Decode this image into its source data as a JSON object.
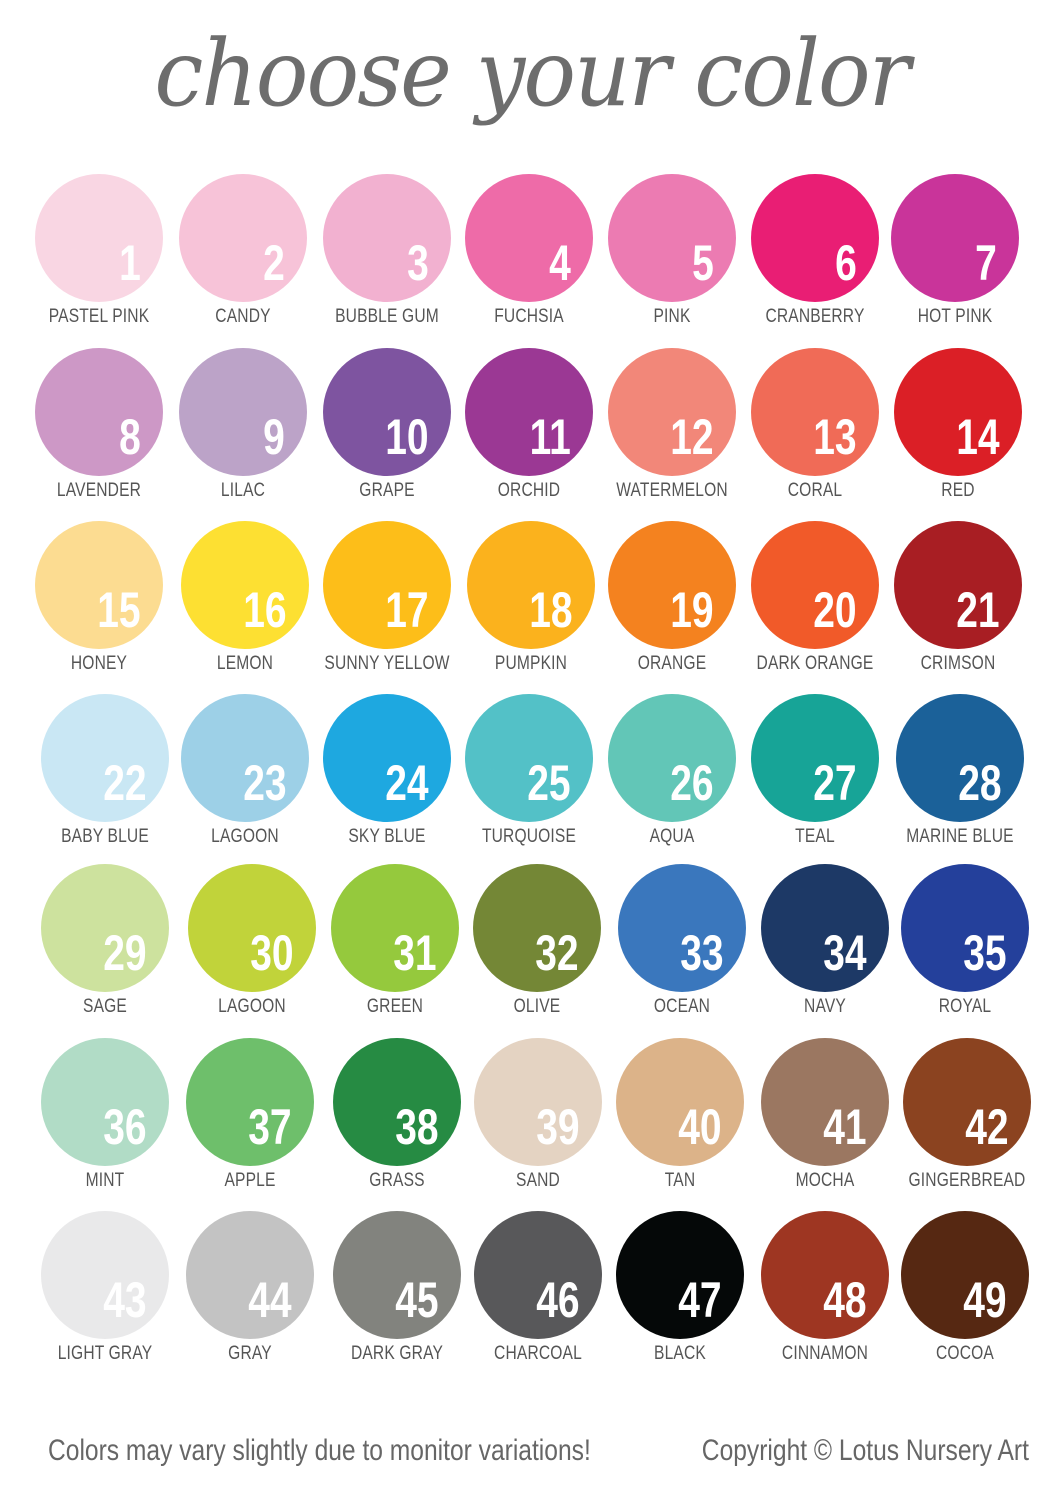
{
  "title": "choose your color",
  "swatches": [
    {
      "number": "1",
      "name": "PASTEL PINK",
      "color": "#f9d6e3"
    },
    {
      "number": "2",
      "name": "CANDY",
      "color": "#f7c3d8"
    },
    {
      "number": "3",
      "name": "BUBBLE GUM",
      "color": "#f2b1d0"
    },
    {
      "number": "4",
      "name": "FUCHSIA",
      "color": "#ee6ba8"
    },
    {
      "number": "5",
      "name": "PINK",
      "color": "#ec7bb2"
    },
    {
      "number": "6",
      "name": "CRANBERRY",
      "color": "#e91e74"
    },
    {
      "number": "7",
      "name": "HOT PINK",
      "color": "#c9349a"
    },
    {
      "number": "8",
      "name": "LAVENDER",
      "color": "#cd98c6"
    },
    {
      "number": "9",
      "name": "LILAC",
      "color": "#bca3c8"
    },
    {
      "number": "10",
      "name": "GRAPE",
      "color": "#7e54a0"
    },
    {
      "number": "11",
      "name": "ORCHID",
      "color": "#9b3894"
    },
    {
      "number": "12",
      "name": "WATERMELON",
      "color": "#f28779"
    },
    {
      "number": "13",
      "name": "CORAL",
      "color": "#f06b57"
    },
    {
      "number": "14",
      "name": "RED",
      "color": "#db1f26"
    },
    {
      "number": "15",
      "name": "HONEY",
      "color": "#fcdc91"
    },
    {
      "number": "16",
      "name": "LEMON",
      "color": "#fde032"
    },
    {
      "number": "17",
      "name": "SUNNY YELLOW",
      "color": "#fdbe19"
    },
    {
      "number": "18",
      "name": "PUMPKIN",
      "color": "#fbb21d"
    },
    {
      "number": "19",
      "name": "ORANGE",
      "color": "#f4821f"
    },
    {
      "number": "20",
      "name": "DARK ORANGE",
      "color": "#f15a29"
    },
    {
      "number": "21",
      "name": "CRIMSON",
      "color": "#a81e23"
    },
    {
      "number": "22",
      "name": "BABY BLUE",
      "color": "#c9e7f4"
    },
    {
      "number": "23",
      "name": "LAGOON",
      "color": "#9dd0e7"
    },
    {
      "number": "24",
      "name": "SKY BLUE",
      "color": "#1ea8e0"
    },
    {
      "number": "25",
      "name": "TURQUOISE",
      "color": "#53c1c7"
    },
    {
      "number": "26",
      "name": "AQUA",
      "color": "#62c6b7"
    },
    {
      "number": "27",
      "name": "TEAL",
      "color": "#17a497"
    },
    {
      "number": "28",
      "name": "MARINE BLUE",
      "color": "#1b6199"
    },
    {
      "number": "29",
      "name": "SAGE",
      "color": "#cde29e"
    },
    {
      "number": "30",
      "name": "LAGOON",
      "color": "#c1d33a"
    },
    {
      "number": "31",
      "name": "GREEN",
      "color": "#95c93d"
    },
    {
      "number": "32",
      "name": "OLIVE",
      "color": "#748736"
    },
    {
      "number": "33",
      "name": "OCEAN",
      "color": "#3a77bd"
    },
    {
      "number": "34",
      "name": "NAVY",
      "color": "#1d3966"
    },
    {
      "number": "35",
      "name": "ROYAL",
      "color": "#24409b"
    },
    {
      "number": "36",
      "name": "MINT",
      "color": "#b1dcc6"
    },
    {
      "number": "37",
      "name": "APPLE",
      "color": "#6ebf6b"
    },
    {
      "number": "38",
      "name": "GRASS",
      "color": "#268b43"
    },
    {
      "number": "39",
      "name": "SAND",
      "color": "#e4d3c2"
    },
    {
      "number": "40",
      "name": "TAN",
      "color": "#dcb389"
    },
    {
      "number": "41",
      "name": "MOCHA",
      "color": "#9b7761"
    },
    {
      "number": "42",
      "name": "GINGERBREAD",
      "color": "#8b4320"
    },
    {
      "number": "43",
      "name": "LIGHT GRAY",
      "color": "#e9e9ea"
    },
    {
      "number": "44",
      "name": "GRAY",
      "color": "#c3c3c3"
    },
    {
      "number": "45",
      "name": "DARK GRAY",
      "color": "#82837e"
    },
    {
      "number": "46",
      "name": "CHARCOAL",
      "color": "#58585a"
    },
    {
      "number": "47",
      "name": "BLACK",
      "color": "#050808"
    },
    {
      "number": "48",
      "name": "CINNAMON",
      "color": "#9e3622"
    },
    {
      "number": "49",
      "name": "COCOA",
      "color": "#562812"
    }
  ],
  "footer": {
    "disclaimer": "Colors may vary slightly due to monitor variations!",
    "copyright": "Copyright © Lotus Nursery Art"
  }
}
